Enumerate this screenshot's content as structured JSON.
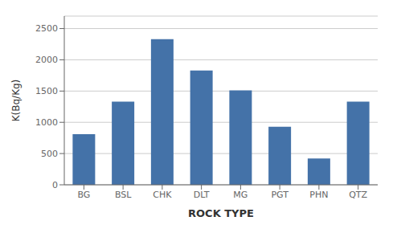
{
  "chart_data": {
    "type": "bar",
    "categories": [
      "BG",
      "BSL",
      "CHK",
      "DLT",
      "MG",
      "PGT",
      "PHN",
      "QTZ"
    ],
    "values": [
      810,
      1330,
      2330,
      1830,
      1510,
      930,
      420,
      1330
    ],
    "color": "#4472a8",
    "xlabel": "ROCK TYPE",
    "ylabel": "K(Bq/Kg)",
    "ylim": [
      0,
      2700
    ],
    "yticks": [
      0,
      500,
      1000,
      1500,
      2000,
      2500
    ],
    "grid": true
  }
}
